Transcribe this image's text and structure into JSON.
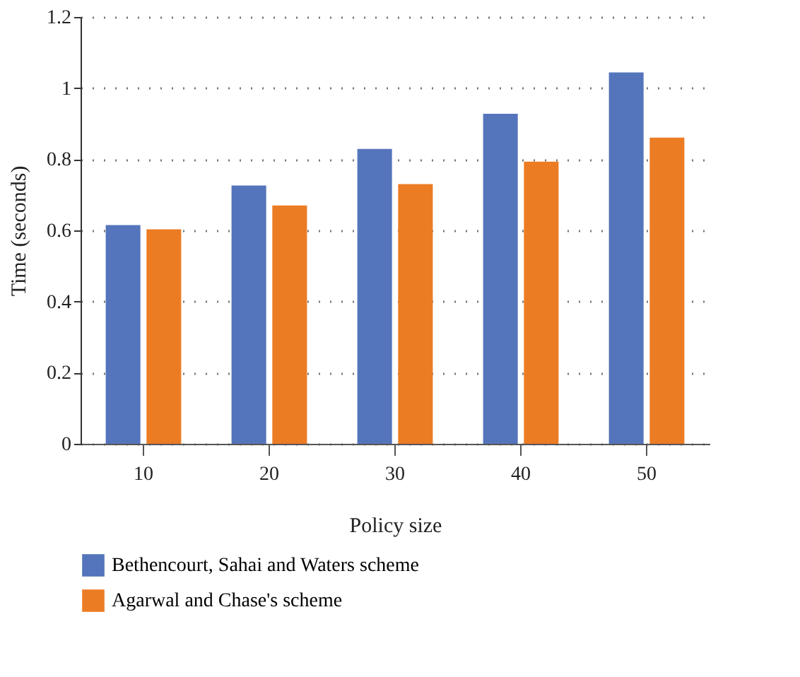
{
  "chart_data": {
    "type": "bar",
    "xlabel": "Policy size",
    "ylabel": "Time (seconds)",
    "categories": [
      "10",
      "20",
      "30",
      "40",
      "50"
    ],
    "series": [
      {
        "name": "Bethencourt, Sahai and Waters scheme",
        "color": "#5475bb",
        "values": [
          0.615,
          0.726,
          0.829,
          0.928,
          1.044
        ]
      },
      {
        "name": "Agarwal and Chase's scheme",
        "color": "#ec7c24",
        "values": [
          0.603,
          0.67,
          0.73,
          0.793,
          0.861
        ]
      }
    ],
    "ylim": [
      0,
      1.2
    ],
    "yticks": [
      0,
      0.2,
      0.4,
      0.6,
      0.8,
      1,
      1.2
    ],
    "grid": "y",
    "legend": "bottom"
  }
}
